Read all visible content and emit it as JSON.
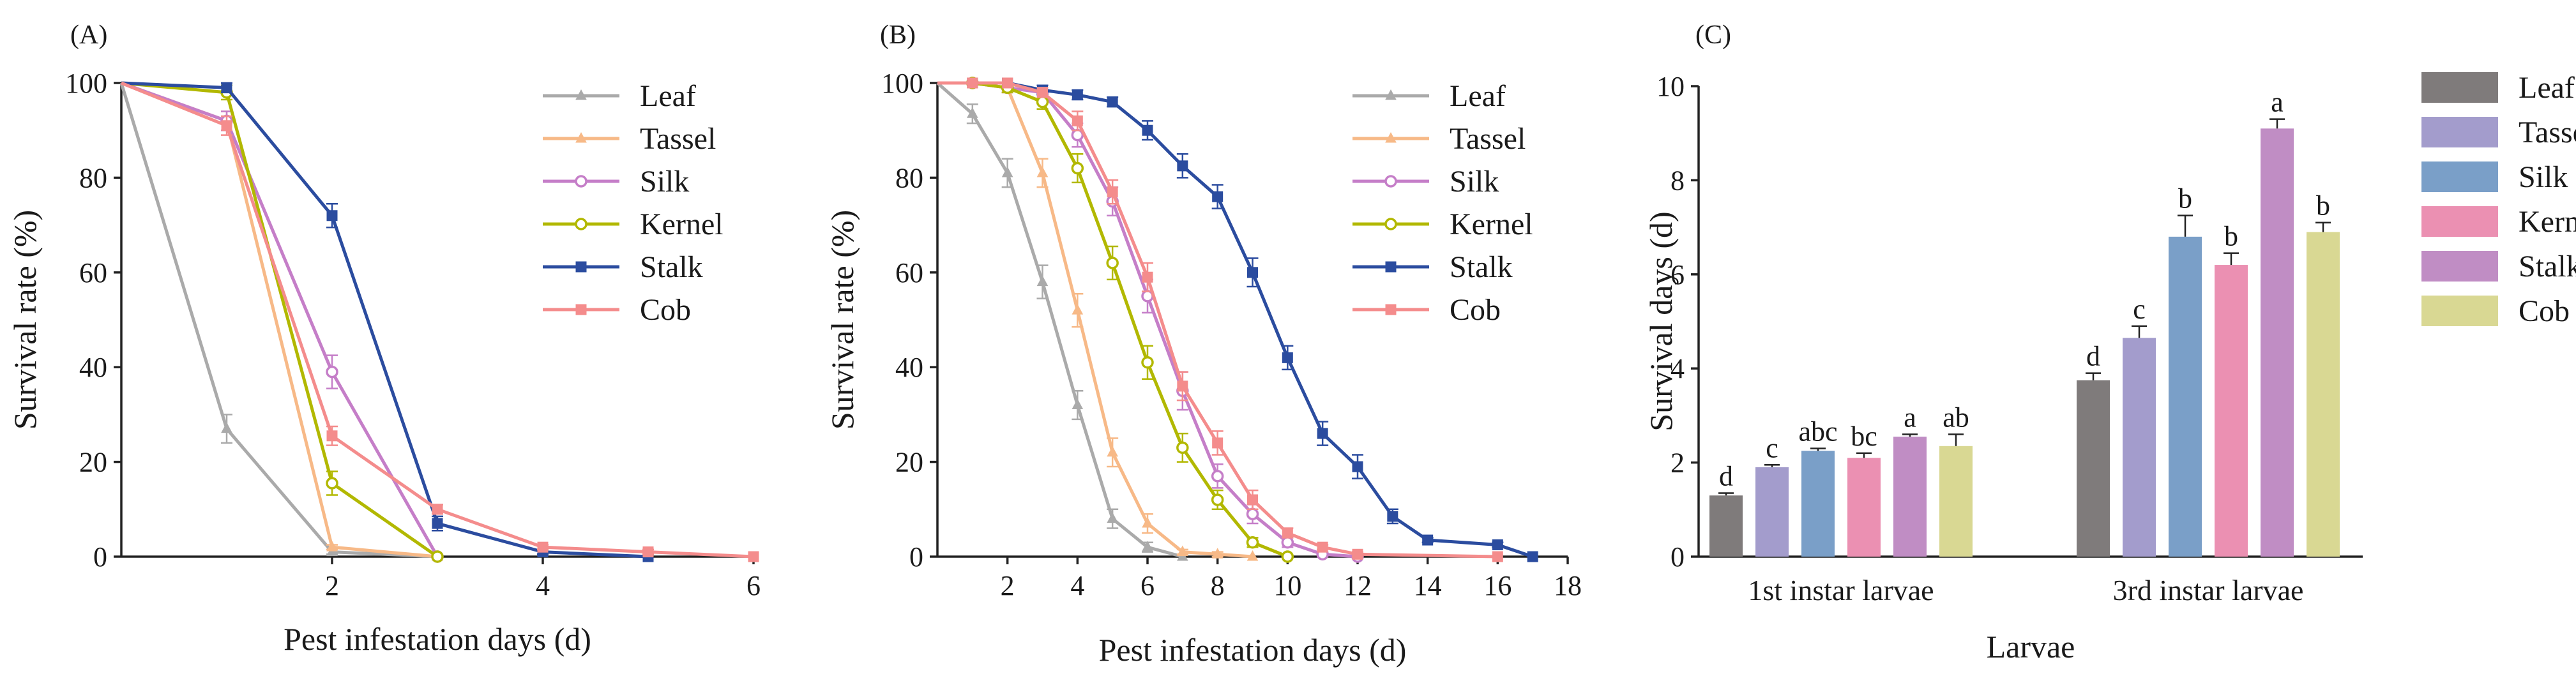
{
  "chart_data": [
    {
      "panel_label": "(A)",
      "type": "line",
      "xlabel": "Pest infestation days (d)",
      "ylabel": "Survival rate (%)",
      "xlim": [
        0,
        6
      ],
      "ylim": [
        0,
        100
      ],
      "xticks": [
        2,
        4,
        6
      ],
      "yticks": [
        0,
        20,
        40,
        60,
        80,
        100
      ],
      "legend": "top-right",
      "series": [
        {
          "name": "Leaf",
          "color": "#aaaaaa",
          "marker": "triangle",
          "x": [
            0,
            1,
            2,
            3
          ],
          "y": [
            100,
            27,
            1,
            0
          ],
          "err": [
            0,
            3,
            0.5,
            0
          ]
        },
        {
          "name": "Tassel",
          "color": "#f7b987",
          "marker": "triangle",
          "x": [
            0,
            1,
            2,
            3
          ],
          "y": [
            100,
            92,
            2,
            0
          ],
          "err": [
            0,
            2,
            0.5,
            0
          ]
        },
        {
          "name": "Silk",
          "color": "#c57ec8",
          "marker": "circle-open",
          "x": [
            0,
            1,
            2,
            3
          ],
          "y": [
            100,
            92,
            39,
            0
          ],
          "err": [
            0,
            2,
            3.5,
            0
          ]
        },
        {
          "name": "Kernel",
          "color": "#b2b800",
          "marker": "circle-open",
          "x": [
            0,
            1,
            2,
            3
          ],
          "y": [
            100,
            98,
            15.5,
            0
          ],
          "err": [
            0,
            1.5,
            2.5,
            0
          ]
        },
        {
          "name": "Stalk",
          "color": "#2b4c9f",
          "marker": "square",
          "x": [
            0,
            1,
            2,
            3,
            4,
            5
          ],
          "y": [
            100,
            99,
            72,
            7,
            1,
            0
          ],
          "err": [
            0,
            1,
            2.5,
            1.5,
            0.5,
            0
          ]
        },
        {
          "name": "Cob",
          "color": "#f48c8c",
          "marker": "square",
          "x": [
            0,
            1,
            2,
            3,
            4,
            5,
            6
          ],
          "y": [
            100,
            91,
            25.5,
            10,
            2,
            1,
            0
          ],
          "err": [
            0,
            2,
            2,
            1,
            0.5,
            0.5,
            0
          ]
        }
      ]
    },
    {
      "panel_label": "(B)",
      "type": "line",
      "xlabel": "Pest infestation days (d)",
      "ylabel": "Survival rate (%)",
      "xlim": [
        0,
        18
      ],
      "ylim": [
        0,
        100
      ],
      "xticks": [
        2,
        4,
        6,
        8,
        10,
        12,
        14,
        16,
        18
      ],
      "yticks": [
        0,
        20,
        40,
        60,
        80,
        100
      ],
      "legend": "top-right",
      "series": [
        {
          "name": "Leaf",
          "color": "#aaaaaa",
          "marker": "triangle",
          "x": [
            0,
            1,
            2,
            3,
            4,
            5,
            6,
            7
          ],
          "y": [
            100,
            93.5,
            81,
            58,
            32,
            8,
            2,
            0
          ],
          "err": [
            0,
            2,
            3,
            3.5,
            3,
            2,
            1,
            0
          ]
        },
        {
          "name": "Tassel",
          "color": "#f7b987",
          "marker": "triangle",
          "x": [
            0,
            1,
            2,
            3,
            4,
            5,
            6,
            7,
            8,
            9
          ],
          "y": [
            100,
            100,
            99,
            81,
            52,
            22,
            7,
            1,
            0.5,
            0
          ],
          "err": [
            0,
            0,
            1,
            3,
            3.5,
            3,
            2,
            0.5,
            0.5,
            0
          ]
        },
        {
          "name": "Silk",
          "color": "#c57ec8",
          "marker": "circle-open",
          "x": [
            0,
            1,
            2,
            3,
            4,
            5,
            6,
            7,
            8,
            9,
            10,
            11,
            12
          ],
          "y": [
            100,
            100,
            99,
            98,
            89,
            75,
            55,
            35,
            17,
            9,
            3,
            0.5,
            0
          ],
          "err": [
            0,
            0,
            1,
            1,
            2.5,
            3,
            3.5,
            4,
            2.5,
            2,
            1,
            0.5,
            0
          ]
        },
        {
          "name": "Kernel",
          "color": "#b2b800",
          "marker": "circle-open",
          "x": [
            0,
            1,
            2,
            3,
            4,
            5,
            6,
            7,
            8,
            9,
            10
          ],
          "y": [
            100,
            100,
            99,
            96,
            82,
            62,
            41,
            23,
            12,
            3,
            0
          ],
          "err": [
            0,
            0,
            1,
            1.5,
            3,
            3.5,
            3.5,
            3,
            2,
            1,
            0
          ]
        },
        {
          "name": "Stalk",
          "color": "#2b4c9f",
          "marker": "square",
          "x": [
            0,
            1,
            2,
            3,
            4,
            5,
            6,
            7,
            8,
            9,
            10,
            11,
            12,
            13,
            14,
            16,
            17
          ],
          "y": [
            100,
            100,
            100,
            98.5,
            97.5,
            96,
            90,
            82.5,
            76,
            60,
            42,
            26,
            19,
            8.5,
            3.5,
            2.5,
            0
          ],
          "err": [
            0,
            0,
            0,
            1,
            1,
            1,
            2,
            2.5,
            2.5,
            3,
            2.5,
            2.5,
            2.5,
            1.5,
            0.5,
            0.5,
            0
          ]
        },
        {
          "name": "Cob",
          "color": "#f48c8c",
          "marker": "square",
          "x": [
            0,
            1,
            2,
            3,
            4,
            5,
            6,
            7,
            8,
            9,
            10,
            11,
            12,
            16
          ],
          "y": [
            100,
            100,
            100,
            98,
            92,
            77,
            59,
            36,
            24,
            12,
            5,
            2,
            0.5,
            0
          ],
          "err": [
            0,
            0,
            0,
            1,
            2,
            2.5,
            3,
            3,
            2.5,
            2,
            1,
            0.5,
            0.5,
            0
          ]
        }
      ]
    },
    {
      "panel_label": "(C)",
      "type": "bar",
      "xlabel": "Larvae",
      "ylabel": "Survival days (d)",
      "ylim": [
        0,
        10
      ],
      "yticks": [
        0,
        2,
        4,
        6,
        8,
        10
      ],
      "legend": "top-right",
      "categories": [
        "1st instar larvae",
        "3rd instar larvae"
      ],
      "series": [
        {
          "name": "Leaf",
          "color": "#7f7b7b",
          "values": [
            1.3,
            3.75
          ],
          "err": [
            0.05,
            0.15
          ],
          "letters": [
            "d",
            "d"
          ]
        },
        {
          "name": "Tassel",
          "color": "#a39ccc",
          "values": [
            1.9,
            4.65
          ],
          "err": [
            0.05,
            0.25
          ],
          "letters": [
            "c",
            "c"
          ]
        },
        {
          "name": "Silk",
          "color": "#7a9fc8",
          "values": [
            2.25,
            6.8
          ],
          "err": [
            0.05,
            0.45
          ],
          "letters": [
            "abc",
            "b"
          ]
        },
        {
          "name": "Kernel",
          "color": "#eb90b2",
          "values": [
            2.1,
            6.2
          ],
          "err": [
            0.1,
            0.25
          ],
          "letters": [
            "bc",
            "b"
          ]
        },
        {
          "name": "Stalk",
          "color": "#c08dc4",
          "values": [
            2.55,
            9.1
          ],
          "err": [
            0.05,
            0.2
          ],
          "letters": [
            "a",
            "a"
          ]
        },
        {
          "name": "Cob",
          "color": "#d9d893",
          "values": [
            2.35,
            6.9
          ],
          "err": [
            0.25,
            0.2
          ],
          "letters": [
            "ab",
            "b"
          ]
        }
      ]
    }
  ]
}
